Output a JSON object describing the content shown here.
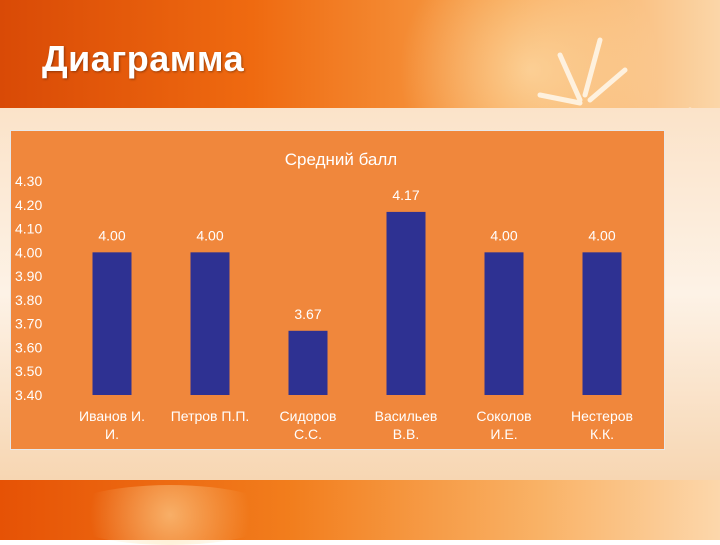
{
  "slide": {
    "title": "Диаграмма"
  },
  "colors": {
    "bar": "#2e3192",
    "chart_bg": "#f0873c",
    "text": "#ffffff",
    "grid": "#f5a26a"
  },
  "chart_data": {
    "type": "bar",
    "title": "Средний балл",
    "xlabel": "",
    "ylabel": "",
    "categories": [
      [
        "Иванов И.",
        "И."
      ],
      [
        "Петров П.П."
      ],
      [
        "Сидоров",
        "С.С."
      ],
      [
        "Васильев",
        "В.В."
      ],
      [
        "Соколов",
        "И.Е."
      ],
      [
        "Нестеров",
        "К.К."
      ]
    ],
    "values": [
      4.0,
      4.0,
      3.67,
      4.17,
      4.0,
      4.0
    ],
    "data_labels": [
      "4.00",
      "4.00",
      "3.67",
      "4.17",
      "4.00",
      "4.00"
    ],
    "ylim": [
      3.4,
      4.3
    ],
    "yticks": [
      "4.30",
      "4.20",
      "4.10",
      "4.00",
      "3.90",
      "3.80",
      "3.70",
      "3.60",
      "3.50",
      "3.40"
    ],
    "grid": false,
    "legend": "none"
  }
}
